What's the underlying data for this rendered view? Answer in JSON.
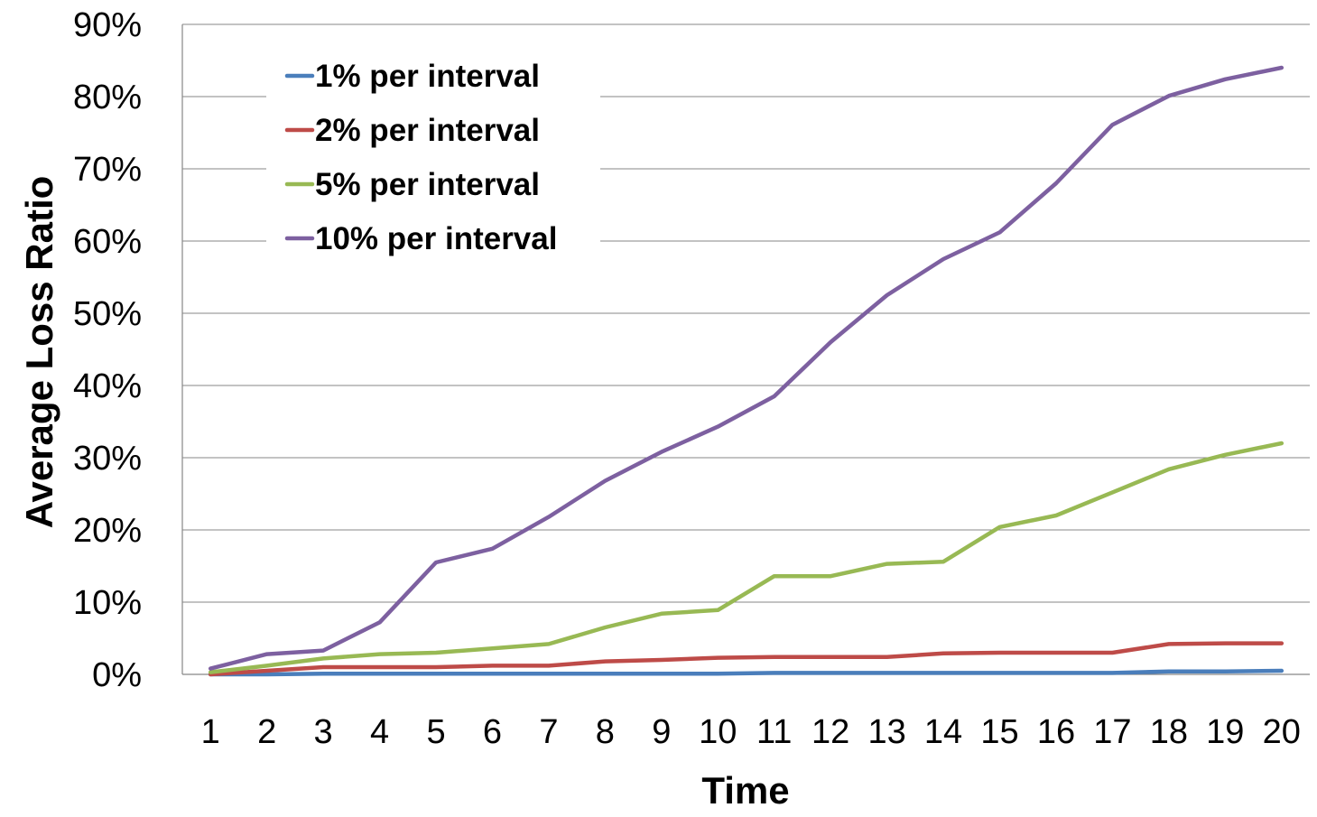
{
  "chart_data": {
    "type": "line",
    "title": "",
    "xlabel": "Time",
    "ylabel": "Average Loss Ratio",
    "x": [
      1,
      2,
      3,
      4,
      5,
      6,
      7,
      8,
      9,
      10,
      11,
      12,
      13,
      14,
      15,
      16,
      17,
      18,
      19,
      20
    ],
    "ylim": [
      0,
      90
    ],
    "yticks": [
      "0%",
      "10%",
      "20%",
      "30%",
      "40%",
      "50%",
      "60%",
      "70%",
      "80%",
      "90%"
    ],
    "y_unit": "%",
    "grid": true,
    "legend_position": "top-left",
    "series": [
      {
        "name": "1% per interval",
        "color": "#4a7ebb",
        "values": [
          0,
          0,
          0.1,
          0.1,
          0.1,
          0.1,
          0.1,
          0.1,
          0.1,
          0.1,
          0.2,
          0.2,
          0.2,
          0.2,
          0.2,
          0.2,
          0.2,
          0.4,
          0.4,
          0.5
        ]
      },
      {
        "name": "2% per interval",
        "color": "#be4b48",
        "values": [
          0,
          0.5,
          1.0,
          1.0,
          1.0,
          1.2,
          1.2,
          1.8,
          2.0,
          2.3,
          2.4,
          2.4,
          2.4,
          2.9,
          3.0,
          3.0,
          3.0,
          4.2,
          4.3,
          4.3
        ]
      },
      {
        "name": "5% per interval",
        "color": "#98b954",
        "values": [
          0.3,
          1.2,
          2.2,
          2.8,
          3.0,
          3.6,
          4.2,
          6.5,
          8.4,
          8.9,
          13.6,
          13.6,
          15.3,
          15.6,
          20.4,
          22.0,
          25.2,
          28.4,
          30.4,
          32.0
        ]
      },
      {
        "name": "10% per interval",
        "color": "#7d60a0",
        "values": [
          0.8,
          2.8,
          3.3,
          7.2,
          15.5,
          17.4,
          21.8,
          26.8,
          30.8,
          34.3,
          38.5,
          46.0,
          52.5,
          57.5,
          61.2,
          68.0,
          76.1,
          80.1,
          82.4,
          84.0
        ]
      }
    ]
  }
}
